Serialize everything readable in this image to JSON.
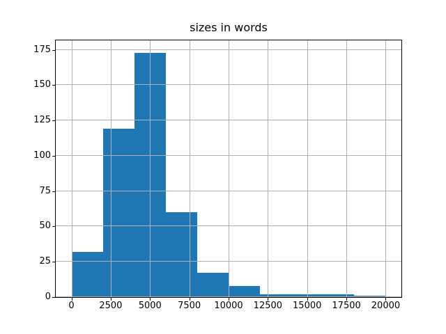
{
  "chart_data": {
    "type": "bar",
    "subtype": "histogram",
    "title": "sizes in words",
    "xlabel": "",
    "ylabel": "",
    "bin_edges": [
      0,
      2000,
      4000,
      6000,
      8000,
      10000,
      12000,
      14000,
      16000,
      18000,
      20000
    ],
    "values": [
      32,
      119,
      173,
      60,
      17,
      8,
      2,
      2,
      2,
      1
    ],
    "xticks": [
      0,
      2500,
      5000,
      7500,
      10000,
      12500,
      15000,
      17500,
      20000
    ],
    "yticks": [
      0,
      25,
      50,
      75,
      100,
      125,
      150,
      175
    ],
    "xlim": [
      -1000,
      21000
    ],
    "ylim": [
      0,
      181.65
    ],
    "grid": true,
    "legend": false,
    "bar_color": "#1f77b4",
    "grid_color": "#b0b0b0",
    "axis_color": "#000000",
    "text_color": "#000000",
    "background_color": "#ffffff"
  }
}
